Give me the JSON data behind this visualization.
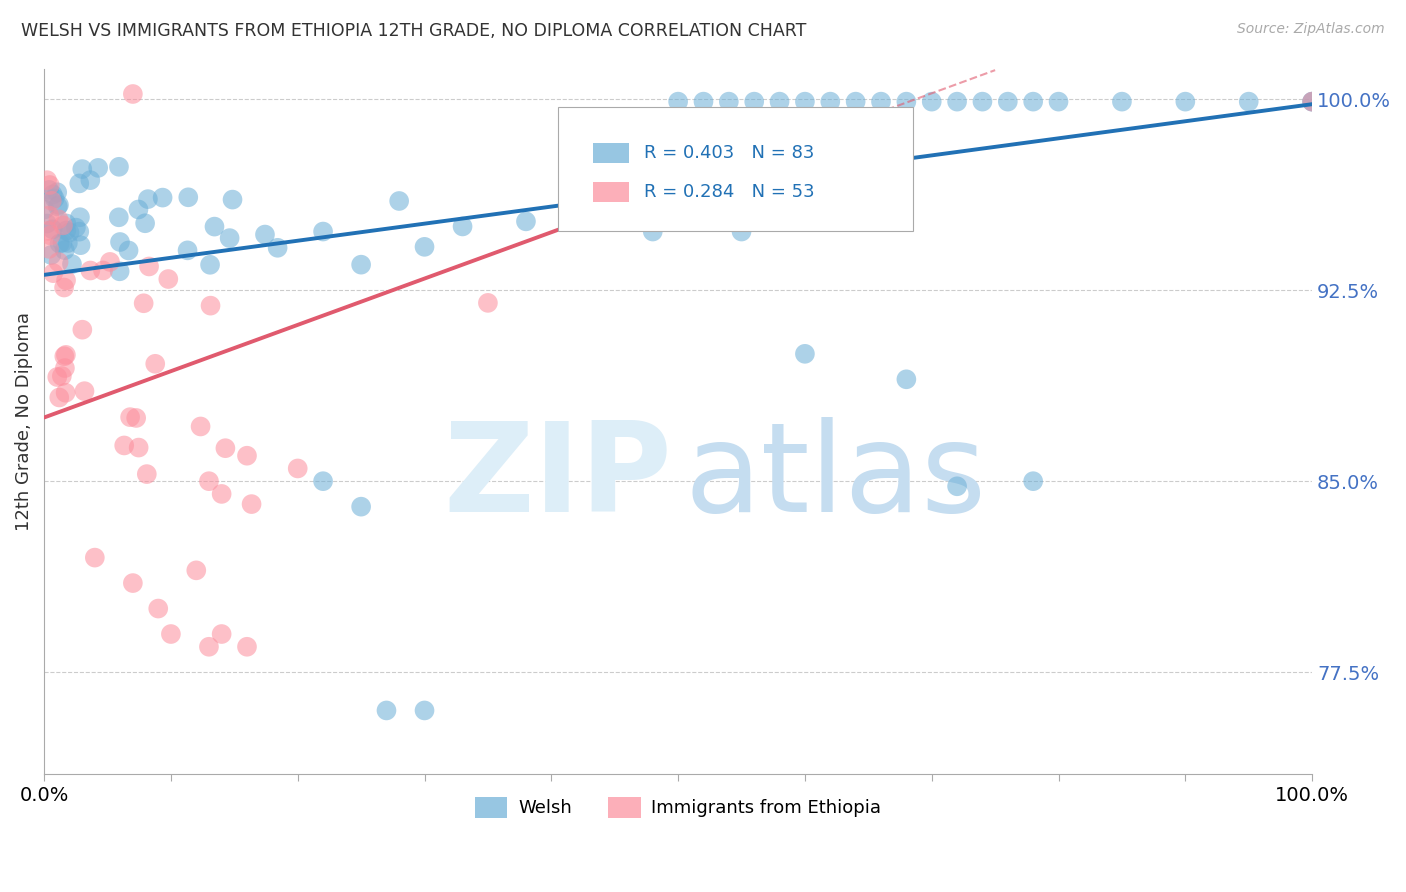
{
  "title": "WELSH VS IMMIGRANTS FROM ETHIOPIA 12TH GRADE, NO DIPLOMA CORRELATION CHART",
  "source": "Source: ZipAtlas.com",
  "ylabel": "12th Grade, No Diploma",
  "xlim": [
    0.0,
    1.0
  ],
  "ylim": [
    0.735,
    1.012
  ],
  "yticks": [
    0.775,
    0.85,
    0.925,
    1.0
  ],
  "ytick_labels": [
    "77.5%",
    "85.0%",
    "92.5%",
    "100.0%"
  ],
  "welsh_R": 0.403,
  "welsh_N": 83,
  "ethiopia_R": 0.284,
  "ethiopia_N": 53,
  "welsh_color": "#6baed6",
  "ethiopia_color": "#fc8d9c",
  "welsh_line_color": "#2171b5",
  "ethiopia_line_color": "#e05a6e",
  "background_color": "#ffffff",
  "legend_label_welsh": "Welsh",
  "legend_label_ethiopia": "Immigrants from Ethiopia",
  "welsh_line_x0": 0.0,
  "welsh_line_y0": 0.931,
  "welsh_line_x1": 1.0,
  "welsh_line_y1": 0.998,
  "eth_line_x0": 0.0,
  "eth_line_y0": 0.875,
  "eth_line_x1": 0.55,
  "eth_line_y1": 0.975
}
